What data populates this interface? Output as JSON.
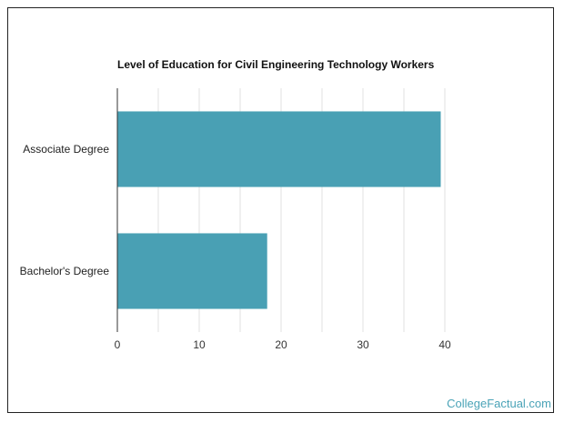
{
  "chart_data": {
    "type": "bar",
    "orientation": "horizontal",
    "title": "Level of Education for Civil Engineering Technology Workers",
    "categories": [
      "Associate Degree",
      "Bachelor's Degree"
    ],
    "values": [
      39.5,
      18.3
    ],
    "xlim": [
      0,
      40
    ],
    "xticks": [
      "0",
      "10",
      "20",
      "30",
      "40"
    ],
    "grid": true,
    "bar_color": "#49a0b4",
    "grid_color": "#e0e0e0",
    "axis_color": "#333333"
  },
  "watermark": "CollegeFactual.com"
}
